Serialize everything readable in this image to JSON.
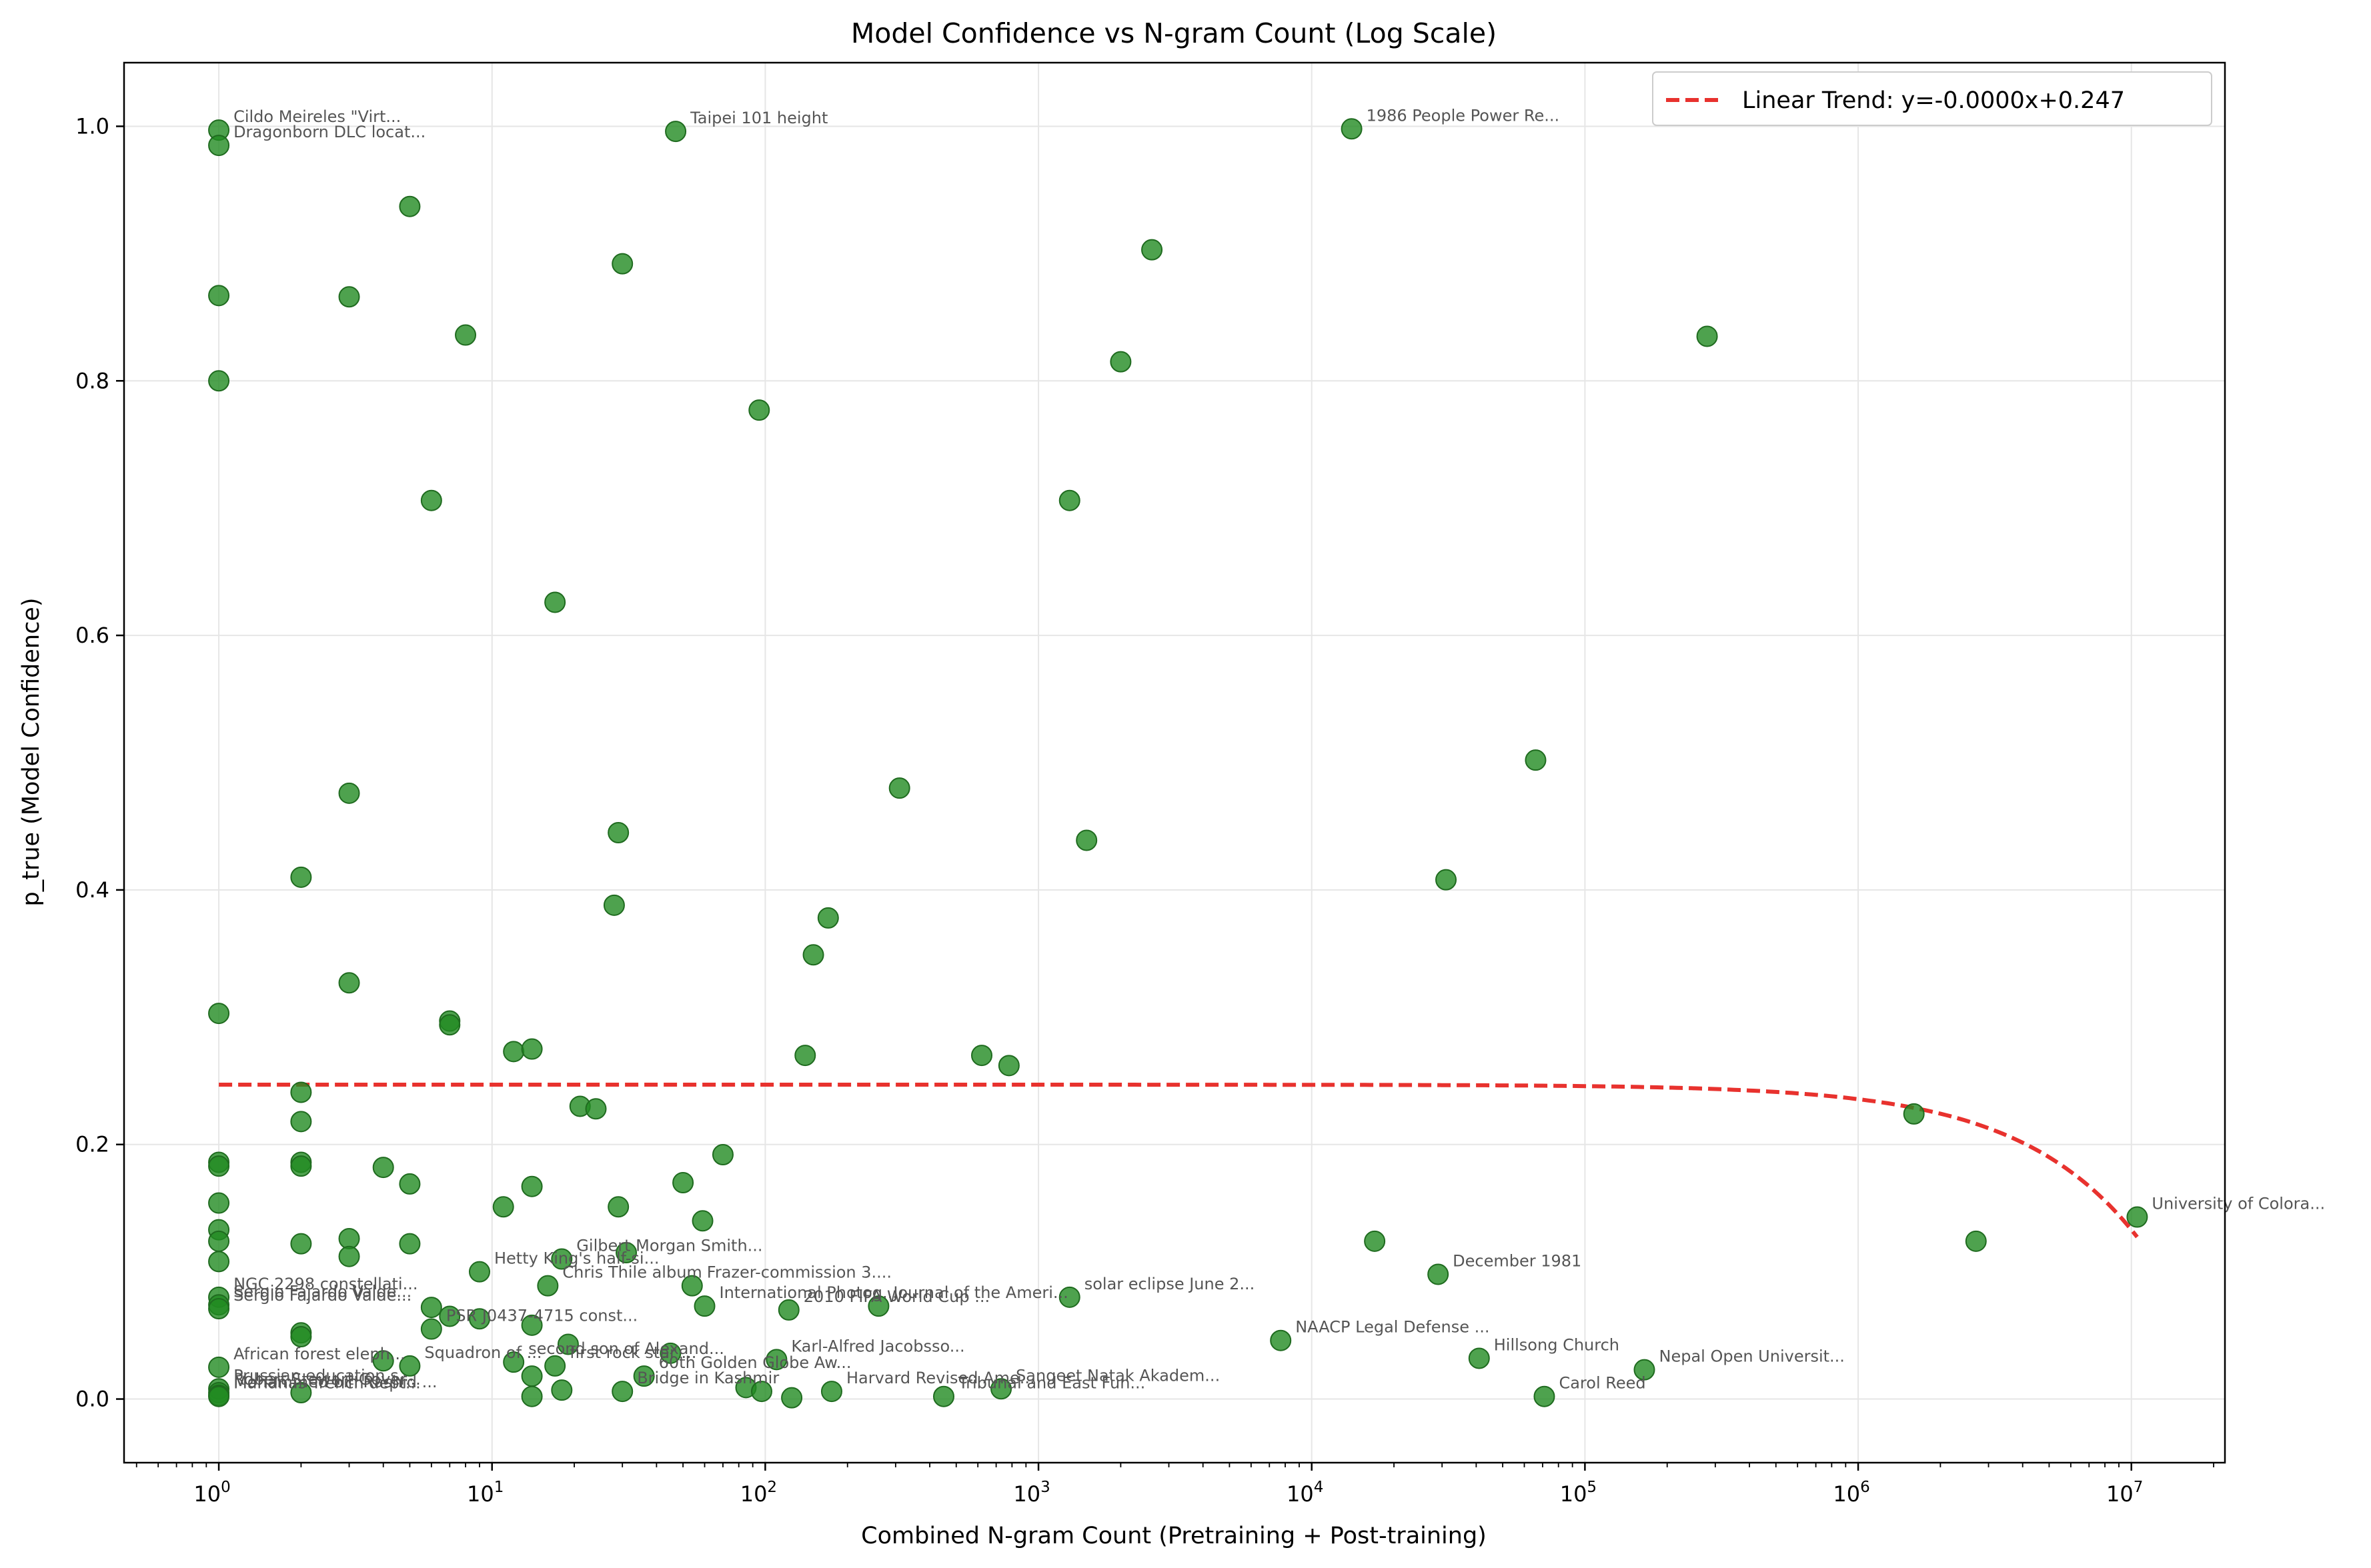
{
  "chart_data": {
    "type": "scatter",
    "title": "Model Confidence vs N-gram Count (Log Scale)",
    "xlabel": "Combined N-gram Count (Pretraining + Post-training)",
    "ylabel": "p_true (Model Confidence)",
    "xscale": "log",
    "xlim": [
      0.45,
      22000000
    ],
    "ylim": [
      -0.05,
      1.05
    ],
    "x_ticks": [
      1,
      10,
      100,
      1000,
      10000,
      100000,
      1000000,
      10000000
    ],
    "x_tick_labels": [
      [
        "10",
        "0"
      ],
      [
        "10",
        "1"
      ],
      [
        "10",
        "2"
      ],
      [
        "10",
        "3"
      ],
      [
        "10",
        "4"
      ],
      [
        "10",
        "5"
      ],
      [
        "10",
        "6"
      ],
      [
        "10",
        "7"
      ]
    ],
    "y_ticks": [
      0.0,
      0.2,
      0.4,
      0.6,
      0.8,
      1.0
    ],
    "y_tick_labels": [
      "0.0",
      "0.2",
      "0.4",
      "0.6",
      "0.8",
      "1.0"
    ],
    "grid": true,
    "legend_position": "top-right",
    "colors": {
      "points": "#228B22",
      "trend": "#e8322e"
    },
    "trend": {
      "name": "Linear Trend: y=-0.0000x+0.247",
      "slope": -1.14e-08,
      "intercept": 0.247,
      "x_range": [
        1,
        10500000
      ]
    },
    "points": [
      {
        "x": 1,
        "y": 0.997,
        "label": "Cildo Meireles \"Virt..."
      },
      {
        "x": 1,
        "y": 0.985,
        "label": "Dragonborn DLC locat..."
      },
      {
        "x": 47,
        "y": 0.996,
        "label": "Taipei 101 height"
      },
      {
        "x": 14000,
        "y": 0.998,
        "label": "1986 People Power Re..."
      },
      {
        "x": 1,
        "y": 0.867
      },
      {
        "x": 1,
        "y": 0.8
      },
      {
        "x": 1,
        "y": 0.303
      },
      {
        "x": 1,
        "y": 0.186
      },
      {
        "x": 1,
        "y": 0.183
      },
      {
        "x": 1,
        "y": 0.154
      },
      {
        "x": 1,
        "y": 0.133
      },
      {
        "x": 1,
        "y": 0.124
      },
      {
        "x": 1,
        "y": 0.108
      },
      {
        "x": 1,
        "y": 0.08,
        "label": "NGC 2298 constellati..."
      },
      {
        "x": 1,
        "y": 0.074,
        "label": "Sergio Fajardo Valde..."
      },
      {
        "x": 1,
        "y": 0.071,
        "label": "Sergio Fajardo Valde..."
      },
      {
        "x": 1,
        "y": 0.025,
        "label": "African forest eleph..."
      },
      {
        "x": 1,
        "y": 0.008,
        "label": "Prussian education s..."
      },
      {
        "x": 1,
        "y": 0.005,
        "label": "Robert Stewart Gover..."
      },
      {
        "x": 1,
        "y": 0.003,
        "label": "Mohammed bin Rashid ..."
      },
      {
        "x": 1,
        "y": 0.002,
        "label": "Marianas Trench dept..."
      },
      {
        "x": 2,
        "y": 0.41
      },
      {
        "x": 2,
        "y": 0.241
      },
      {
        "x": 2,
        "y": 0.218
      },
      {
        "x": 2,
        "y": 0.186
      },
      {
        "x": 2,
        "y": 0.183
      },
      {
        "x": 2,
        "y": 0.122
      },
      {
        "x": 2,
        "y": 0.052
      },
      {
        "x": 2,
        "y": 0.049
      },
      {
        "x": 2,
        "y": 0.005
      },
      {
        "x": 3,
        "y": 0.866
      },
      {
        "x": 3,
        "y": 0.476
      },
      {
        "x": 3,
        "y": 0.327
      },
      {
        "x": 3,
        "y": 0.126
      },
      {
        "x": 3,
        "y": 0.112
      },
      {
        "x": 4,
        "y": 0.182
      },
      {
        "x": 4,
        "y": 0.03
      },
      {
        "x": 5,
        "y": 0.937
      },
      {
        "x": 5,
        "y": 0.169
      },
      {
        "x": 5,
        "y": 0.122
      },
      {
        "x": 5,
        "y": 0.026,
        "label": "Squadron of ..."
      },
      {
        "x": 6,
        "y": 0.706
      },
      {
        "x": 6,
        "y": 0.072
      },
      {
        "x": 6,
        "y": 0.055,
        "label": "PSR J0437-4715 const..."
      },
      {
        "x": 7,
        "y": 0.297
      },
      {
        "x": 7,
        "y": 0.294
      },
      {
        "x": 7,
        "y": 0.065
      },
      {
        "x": 8,
        "y": 0.836
      },
      {
        "x": 9,
        "y": 0.1,
        "label": "Hetty King's half-si..."
      },
      {
        "x": 9,
        "y": 0.063
      },
      {
        "x": 11,
        "y": 0.151
      },
      {
        "x": 12,
        "y": 0.273
      },
      {
        "x": 12,
        "y": 0.029,
        "label": "second son of Alexand..."
      },
      {
        "x": 14,
        "y": 0.275
      },
      {
        "x": 14,
        "y": 0.167
      },
      {
        "x": 14,
        "y": 0.058
      },
      {
        "x": 14,
        "y": 0.018
      },
      {
        "x": 14,
        "y": 0.002
      },
      {
        "x": 16,
        "y": 0.089,
        "label": "Chris Thile album"
      },
      {
        "x": 17,
        "y": 0.626
      },
      {
        "x": 17,
        "y": 0.026,
        "label": "first rock star ..."
      },
      {
        "x": 18,
        "y": 0.11,
        "label": "Gilbert Morgan Smith..."
      },
      {
        "x": 18,
        "y": 0.007
      },
      {
        "x": 19,
        "y": 0.043
      },
      {
        "x": 21,
        "y": 0.23
      },
      {
        "x": 24,
        "y": 0.228
      },
      {
        "x": 28,
        "y": 0.388
      },
      {
        "x": 29,
        "y": 0.445
      },
      {
        "x": 29,
        "y": 0.151
      },
      {
        "x": 30,
        "y": 0.892
      },
      {
        "x": 30,
        "y": 0.006,
        "label": "Bridge in Kashmir"
      },
      {
        "x": 31,
        "y": 0.115
      },
      {
        "x": 36,
        "y": 0.018,
        "label": "60th Golden Globe Aw..."
      },
      {
        "x": 45,
        "y": 0.036
      },
      {
        "x": 50,
        "y": 0.17
      },
      {
        "x": 54,
        "y": 0.089,
        "label": "Frazer-commission 3...."
      },
      {
        "x": 59,
        "y": 0.14
      },
      {
        "x": 60,
        "y": 0.073,
        "label": "International Photog..."
      },
      {
        "x": 70,
        "y": 0.192
      },
      {
        "x": 85,
        "y": 0.009
      },
      {
        "x": 95,
        "y": 0.777
      },
      {
        "x": 97,
        "y": 0.006
      },
      {
        "x": 110,
        "y": 0.031,
        "label": "Karl-Alfred Jacobsso..."
      },
      {
        "x": 122,
        "y": 0.07,
        "label": "2010 FIFA World Cup ..."
      },
      {
        "x": 125,
        "y": 0.001
      },
      {
        "x": 140,
        "y": 0.27
      },
      {
        "x": 150,
        "y": 0.349
      },
      {
        "x": 170,
        "y": 0.378
      },
      {
        "x": 175,
        "y": 0.006,
        "label": "Harvard Revised Ame..."
      },
      {
        "x": 260,
        "y": 0.073,
        "label": "Journal of the Ameri..."
      },
      {
        "x": 310,
        "y": 0.48
      },
      {
        "x": 450,
        "y": 0.002,
        "label": "Tribunal and East Fun..."
      },
      {
        "x": 620,
        "y": 0.27
      },
      {
        "x": 730,
        "y": 0.008,
        "label": "Sangeet Natak Akadem..."
      },
      {
        "x": 780,
        "y": 0.262
      },
      {
        "x": 1300,
        "y": 0.706
      },
      {
        "x": 1300,
        "y": 0.08,
        "label": "solar eclipse June 2..."
      },
      {
        "x": 1500,
        "y": 0.439
      },
      {
        "x": 2000,
        "y": 0.815
      },
      {
        "x": 2600,
        "y": 0.903
      },
      {
        "x": 7700,
        "y": 0.046,
        "label": "NAACP Legal Defense ..."
      },
      {
        "x": 17000,
        "y": 0.124
      },
      {
        "x": 29000,
        "y": 0.098,
        "label": "December 1981"
      },
      {
        "x": 31000,
        "y": 0.408
      },
      {
        "x": 41000,
        "y": 0.032,
        "label": "Hillsong Church"
      },
      {
        "x": 66000,
        "y": 0.502
      },
      {
        "x": 71000,
        "y": 0.002,
        "label": "Carol Reed"
      },
      {
        "x": 165000,
        "y": 0.023,
        "label": "Nepal Open Universit..."
      },
      {
        "x": 280000,
        "y": 0.835
      },
      {
        "x": 1600000,
        "y": 0.224
      },
      {
        "x": 2700000,
        "y": 0.124
      },
      {
        "x": 10500000,
        "y": 0.143,
        "label": "University of Colora..."
      }
    ]
  }
}
